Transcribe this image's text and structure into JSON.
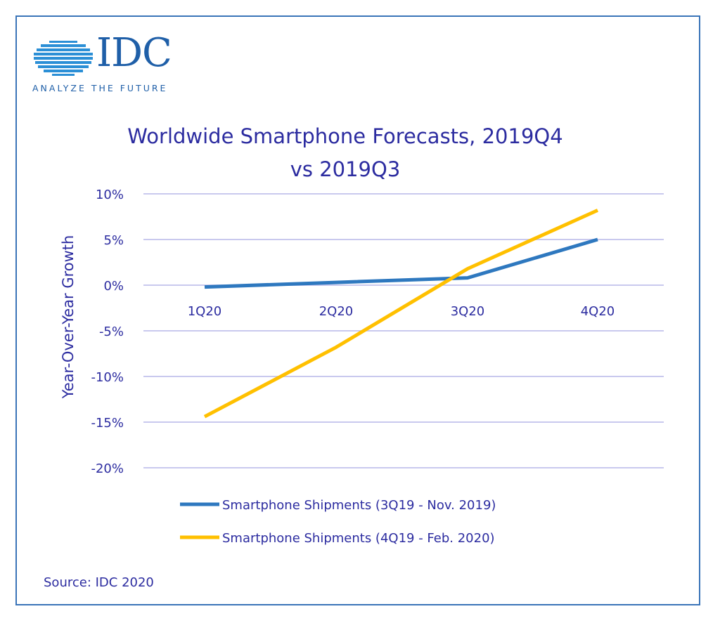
{
  "logo": {
    "brand": "IDC",
    "tagline": "ANALYZE THE FUTURE"
  },
  "colors": {
    "frame": "#3a74b8",
    "title": "#2c2ca0",
    "gridline": "#c9c9ee",
    "series_1": "#2e78bf",
    "series_2": "#ffc000"
  },
  "chart_data": {
    "type": "line",
    "title": [
      "Worldwide Smartphone Forecasts, 2019Q4",
      "vs 2019Q3"
    ],
    "xlabel": "",
    "ylabel": "Year-Over-Year Growth",
    "categories": [
      "1Q20",
      "2Q20",
      "3Q20",
      "4Q20"
    ],
    "y_ticks": [
      "10%",
      "5%",
      "0%",
      "-5%",
      "-10%",
      "-15%",
      "-20%"
    ],
    "y_tick_values": [
      10,
      5,
      0,
      -5,
      -10,
      -15,
      -20
    ],
    "ylim": [
      -20,
      10
    ],
    "grid": "horizontal",
    "legend_position": "bottom",
    "series": [
      {
        "name": "Smartphone Shipments (3Q19 - Nov. 2019)",
        "values": [
          -0.2,
          0.3,
          0.8,
          5.0
        ]
      },
      {
        "name": "Smartphone Shipments (4Q19 - Feb. 2020)",
        "values": [
          -14.4,
          -6.8,
          1.8,
          8.2
        ]
      }
    ]
  },
  "source": "Source: IDC 2020"
}
